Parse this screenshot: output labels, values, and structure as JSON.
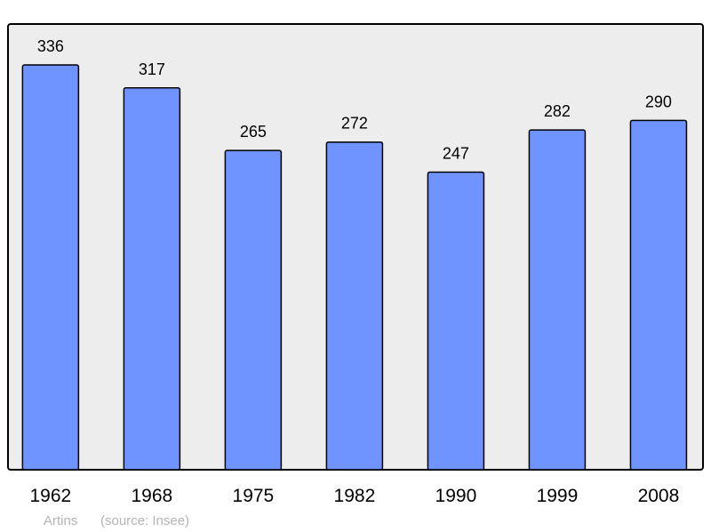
{
  "chart_data": {
    "type": "bar",
    "categories": [
      "1962",
      "1968",
      "1975",
      "1982",
      "1990",
      "1999",
      "2008"
    ],
    "values": [
      336,
      317,
      265,
      272,
      247,
      282,
      290
    ],
    "title": "",
    "xlabel": "",
    "ylabel": "",
    "ylim": [
      0,
      370
    ],
    "grid": false,
    "data_labels": true,
    "colors": {
      "bar": "#7094ff",
      "bar_stroke": "#000000",
      "plot_background": "#ededed",
      "frame": "#000000"
    }
  },
  "footer": {
    "place": "Artins",
    "source": "(source: Insee)",
    "color": "#b4b4b4"
  }
}
